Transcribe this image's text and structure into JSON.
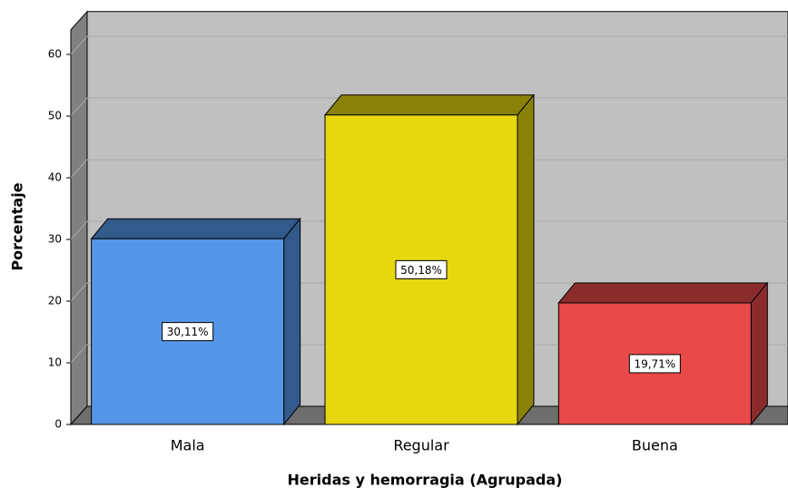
{
  "chart_data": {
    "type": "bar3d",
    "x_label": "Heridas y hemorragia (Agrupada)",
    "y_label": "Porcentaje",
    "categories": [
      "Mala",
      "Regular",
      "Buena"
    ],
    "values": [
      30.11,
      50.18,
      19.71
    ],
    "value_labels": [
      "30,11%",
      "50,18%",
      "19,71%"
    ],
    "colors": [
      "#5596e6",
      "#e6d70f",
      "#e84a4a"
    ],
    "ylim": [
      0,
      64
    ],
    "yticks": [
      0,
      10,
      20,
      30,
      40,
      50,
      60
    ],
    "grid": true
  }
}
